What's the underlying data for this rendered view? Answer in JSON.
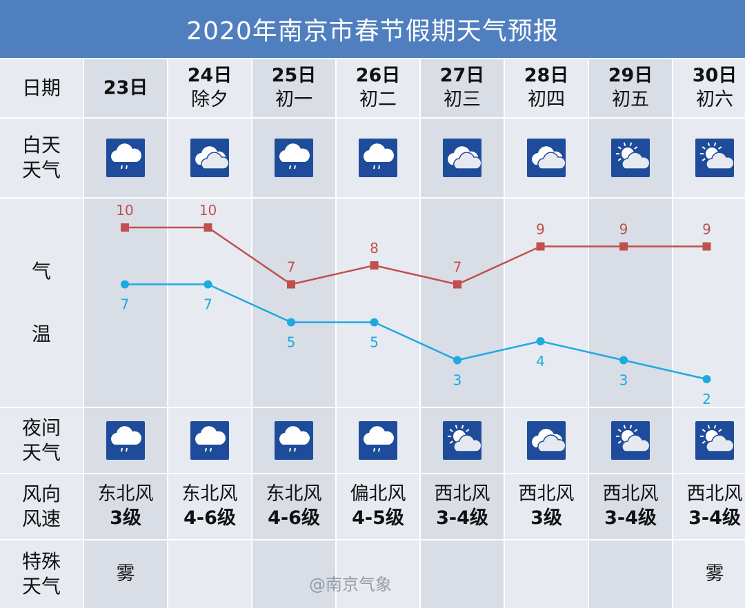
{
  "title": "2020年南京市春节假期天气预报",
  "row_labels": {
    "date": "日期",
    "day_weather": [
      "白天",
      "天气"
    ],
    "temp": [
      "气",
      "温"
    ],
    "night_weather": [
      "夜间",
      "天气"
    ],
    "wind": [
      "风向",
      "风速"
    ],
    "special": [
      "特殊",
      "天气"
    ]
  },
  "days": [
    {
      "date": "23日",
      "lunar": "",
      "day_icon": "light-rain-icon",
      "night_icon": "light-rain-icon",
      "wind_dir": "东北风",
      "wind_level": "3级",
      "special": "雾"
    },
    {
      "date": "24日",
      "lunar": "除夕",
      "day_icon": "cloudy-icon",
      "night_icon": "light-rain-icon",
      "wind_dir": "东北风",
      "wind_level": "4-6级",
      "special": ""
    },
    {
      "date": "25日",
      "lunar": "初一",
      "day_icon": "light-rain-icon",
      "night_icon": "light-rain-icon",
      "wind_dir": "东北风",
      "wind_level": "4-6级",
      "special": ""
    },
    {
      "date": "26日",
      "lunar": "初二",
      "day_icon": "light-rain-icon",
      "night_icon": "light-rain-icon",
      "wind_dir": "偏北风",
      "wind_level": "4-5级",
      "special": ""
    },
    {
      "date": "27日",
      "lunar": "初三",
      "day_icon": "cloudy-icon",
      "night_icon": "partly-cloudy-icon",
      "wind_dir": "西北风",
      "wind_level": "3-4级",
      "special": ""
    },
    {
      "date": "28日",
      "lunar": "初四",
      "day_icon": "cloudy-icon",
      "night_icon": "cloudy-icon",
      "wind_dir": "西北风",
      "wind_level": "3级",
      "special": ""
    },
    {
      "date": "29日",
      "lunar": "初五",
      "day_icon": "partly-cloudy-icon",
      "night_icon": "partly-cloudy-icon",
      "wind_dir": "西北风",
      "wind_level": "3-4级",
      "special": ""
    },
    {
      "date": "30日",
      "lunar": "初六",
      "day_icon": "partly-cloudy-icon",
      "night_icon": "partly-cloudy-icon",
      "wind_dir": "西北风",
      "wind_level": "3-4级",
      "special": "雾"
    }
  ],
  "chart_data": {
    "type": "line",
    "categories": [
      "23日",
      "24日",
      "25日",
      "26日",
      "27日",
      "28日",
      "29日",
      "30日"
    ],
    "series": [
      {
        "values": [
          10,
          10,
          7,
          8,
          7,
          9,
          9,
          9
        ],
        "color": "#c0504d",
        "marker": "square"
      },
      {
        "values": [
          7,
          7,
          5,
          5,
          3,
          4,
          3,
          2
        ],
        "color": "#1fa9e1",
        "marker": "circle"
      }
    ],
    "ylim": [
      0,
      12
    ],
    "grid": false
  },
  "watermark": "@南京气象",
  "colors": {
    "title_bg": "#4f7fbf",
    "icon_bg": "#1e4c9a"
  }
}
